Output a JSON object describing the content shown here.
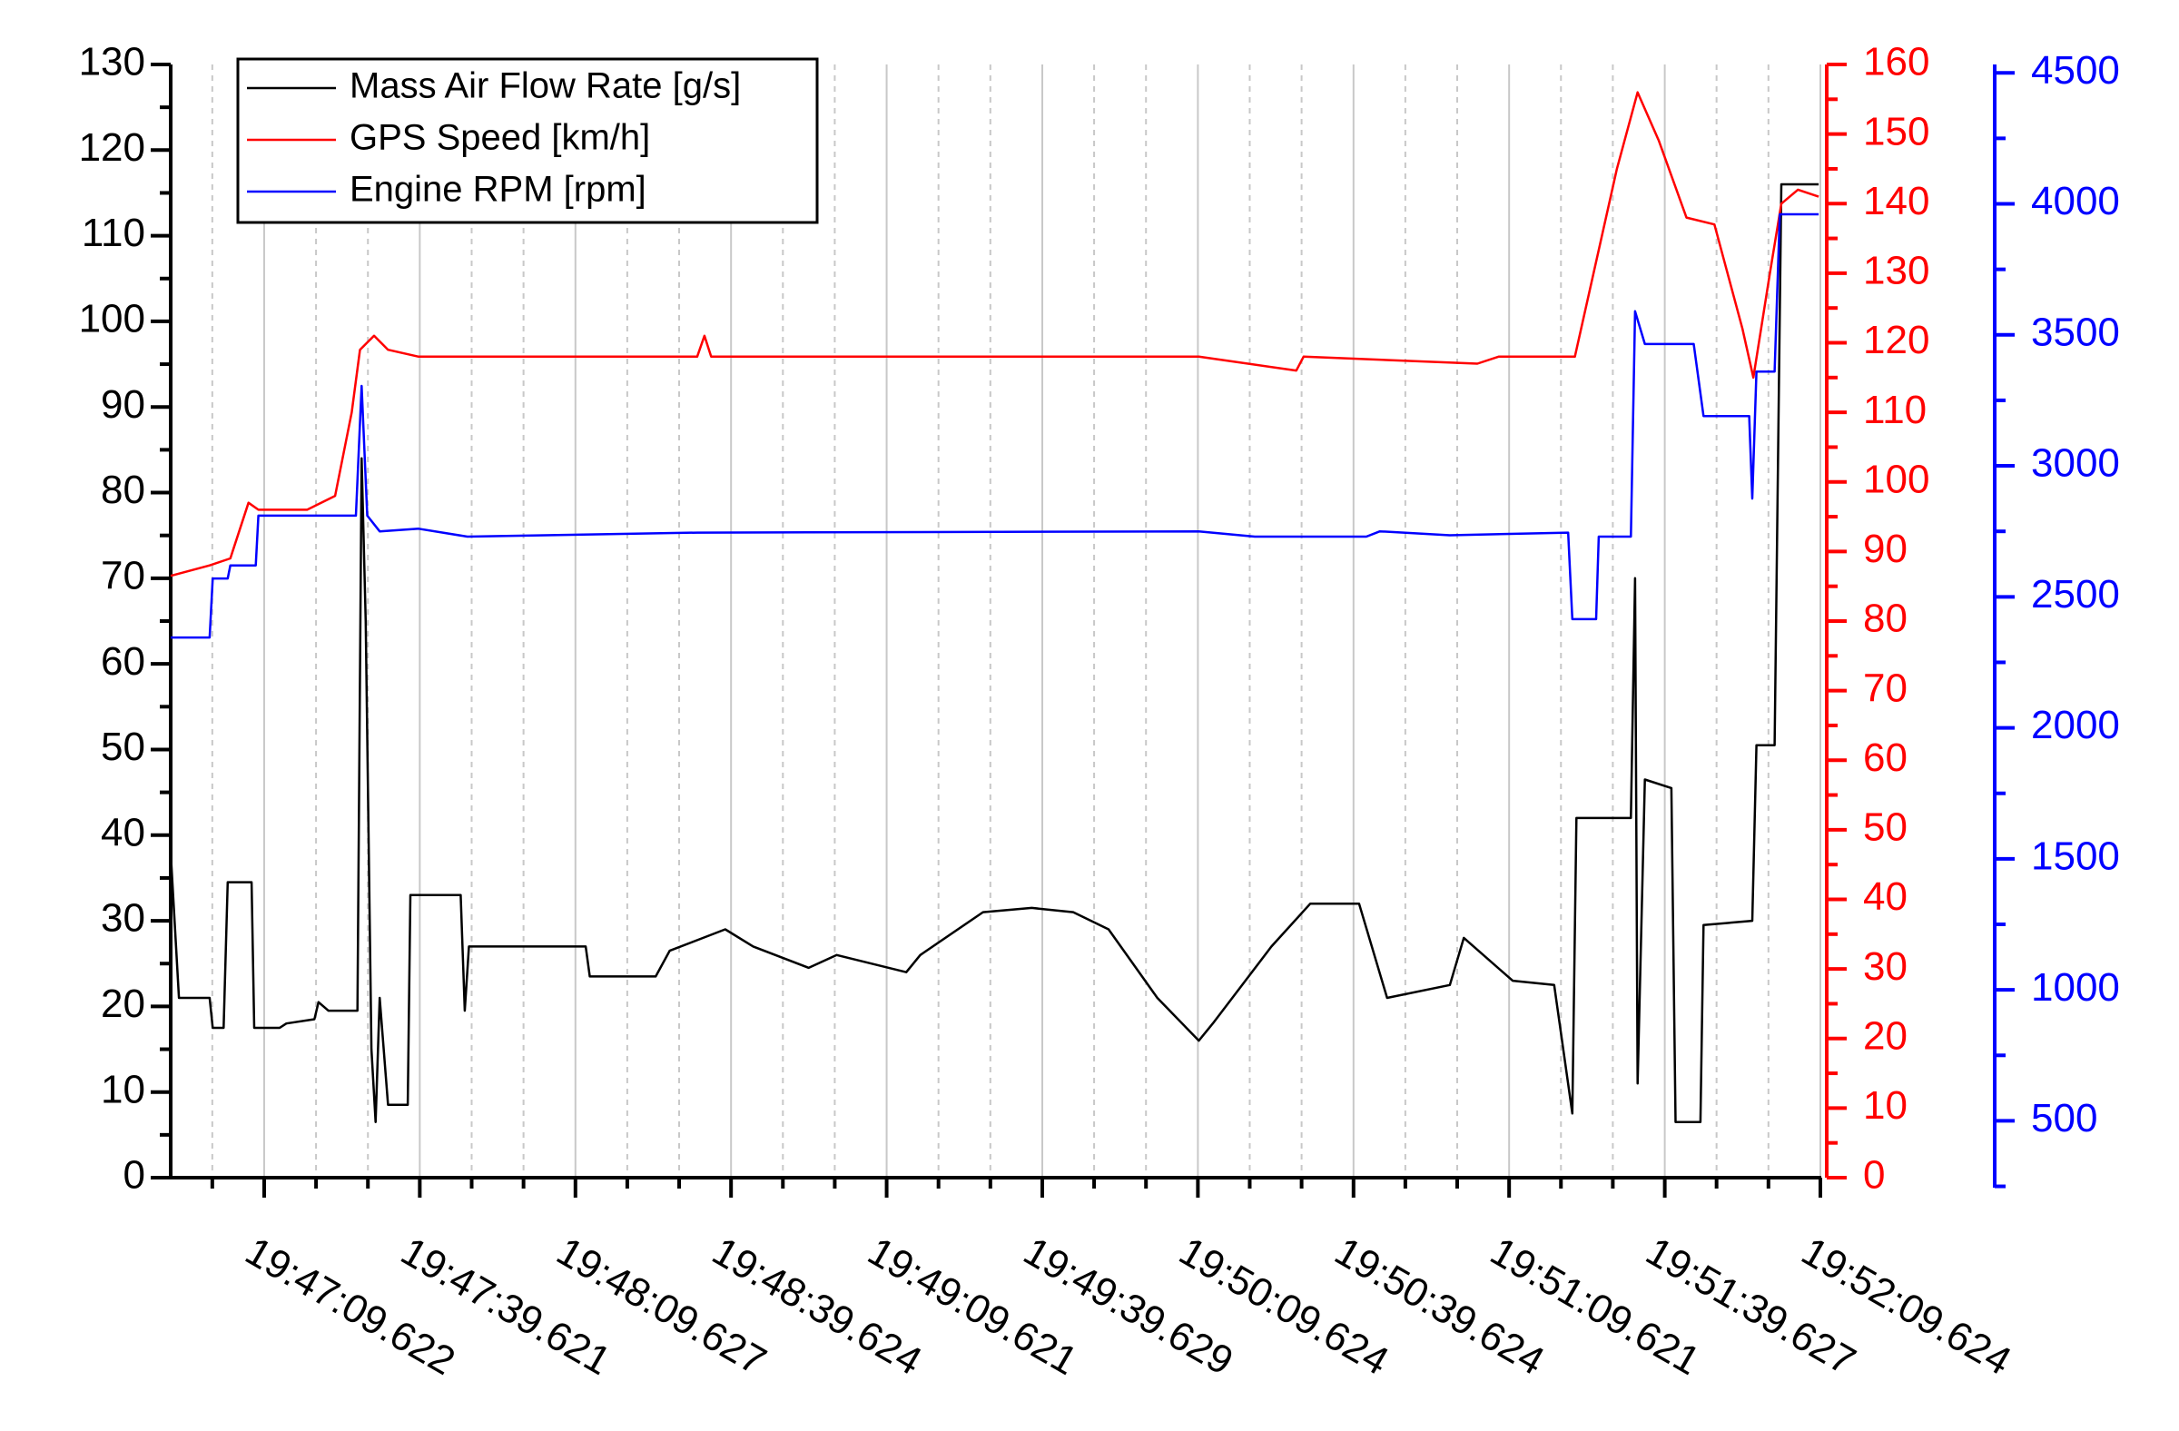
{
  "chart_data": {
    "type": "line",
    "xlim": [
      71211.6,
      71529.8
    ],
    "xticks": [
      {
        "value": 71229.622,
        "label": "19:47:09.622"
      },
      {
        "value": 71259.621,
        "label": "19:47:39.621"
      },
      {
        "value": 71289.627,
        "label": "19:48:09.627"
      },
      {
        "value": 71319.624,
        "label": "19:48:39.624"
      },
      {
        "value": 71349.621,
        "label": "19:49:09.621"
      },
      {
        "value": 71379.629,
        "label": "19:49:39.629"
      },
      {
        "value": 71409.624,
        "label": "19:50:09.624"
      },
      {
        "value": 71439.624,
        "label": "19:50:39.624"
      },
      {
        "value": 71469.621,
        "label": "19:51:09.621"
      },
      {
        "value": 71499.627,
        "label": "19:51:39.627"
      },
      {
        "value": 71529.624,
        "label": "19:52:09.624"
      }
    ],
    "ylim": [
      0,
      130
    ],
    "yticks": [
      0,
      10,
      20,
      30,
      40,
      50,
      60,
      70,
      80,
      90,
      100,
      110,
      120,
      130
    ],
    "y2lim": [
      0,
      160
    ],
    "y2ticks": [
      0,
      10,
      20,
      30,
      40,
      50,
      60,
      70,
      80,
      90,
      100,
      110,
      120,
      130,
      140,
      150,
      160
    ],
    "y3lim": [
      245,
      4532
    ],
    "y3ticks": [
      500,
      1000,
      1500,
      2000,
      2500,
      3000,
      3500,
      4000,
      4500
    ],
    "grid": true,
    "legend": "upper left",
    "series": [
      {
        "name": "Mass Air Flow Rate [g/s]",
        "color": "#000000",
        "axis": "y",
        "x": [
          71211.6,
          71213.2,
          71219.1,
          71219.7,
          71221.8,
          71222.6,
          71227.2,
          71227.7,
          71232.6,
          71233.9,
          71239.3,
          71240.1,
          71242.0,
          71247.6,
          71248.4,
          71249.2,
          71250.3,
          71251.1,
          71251.9,
          71253.5,
          71257.3,
          71257.8,
          71267.5,
          71268.3,
          71269.1,
          71271.5,
          71291.6,
          71292.4,
          71305.1,
          71307.8,
          71318.5,
          71323.9,
          71334.6,
          71340.0,
          71353.4,
          71356.1,
          71368.2,
          71377.6,
          71385.6,
          71392.4,
          71401.8,
          71409.8,
          71412.5,
          71423.8,
          71431.3,
          71440.7,
          71446.1,
          71458.2,
          71460.9,
          71470.3,
          71478.3,
          71481.8,
          71482.6,
          71493.1,
          71493.9,
          71494.4,
          71495.8,
          71500.9,
          71501.7,
          71506.5,
          71507.1,
          71516.5,
          71517.3,
          71520.8,
          71522.1,
          71529.3
        ],
        "values": [
          38,
          21,
          21,
          17.5,
          17.5,
          34.5,
          34.5,
          17.5,
          17.5,
          18,
          18.5,
          20.5,
          19.5,
          19.5,
          84,
          65,
          15,
          6.5,
          21,
          8.5,
          8.5,
          33,
          33,
          19.5,
          27,
          27,
          27,
          23.5,
          23.5,
          26.5,
          29,
          27,
          24.5,
          26,
          24,
          26,
          31,
          31.5,
          31,
          29,
          21,
          16,
          18,
          27,
          32,
          32,
          21,
          22.5,
          28,
          23,
          22.5,
          7.5,
          42,
          42,
          70,
          11,
          46.5,
          45.5,
          6.5,
          6.5,
          29.5,
          30,
          50.5,
          50.5,
          116,
          116
        ]
      },
      {
        "name": "GPS Speed [km/h]",
        "color": "#ff0000",
        "axis": "y2",
        "x": [
          71211.6,
          71219.1,
          71223.1,
          71226.6,
          71228.5,
          71237.9,
          71243.3,
          71246.5,
          71248.1,
          71250.8,
          71253.5,
          71259.4,
          71291.6,
          71313.1,
          71314.5,
          71315.8,
          71366.8,
          71409.8,
          71428.6,
          71430.0,
          71463.5,
          71467.6,
          71482.3,
          71490.4,
          71494.4,
          71498.5,
          71503.8,
          71509.2,
          71514.6,
          71516.7,
          71519.9,
          71522.1,
          71525.3,
          71529.3
        ],
        "values": [
          86.5,
          88,
          89,
          97,
          96,
          96,
          98,
          110,
          119,
          121,
          119,
          118,
          118,
          118,
          121,
          118,
          118,
          118,
          116,
          118,
          117,
          118,
          118,
          145,
          156,
          149,
          138,
          137,
          122,
          115,
          130,
          140,
          142,
          141
        ]
      },
      {
        "name": "Engine RPM [rpm]",
        "color": "#0000ff",
        "axis": "y3",
        "x": [
          71211.6,
          71219.1,
          71219.7,
          71222.6,
          71223.1,
          71228.0,
          71228.5,
          71247.3,
          71248.4,
          71249.5,
          71251.9,
          71259.4,
          71268.8,
          71313.1,
          71409.8,
          71420.6,
          71442.1,
          71444.7,
          71458.2,
          71481.0,
          71481.8,
          71486.4,
          71486.9,
          71493.1,
          71493.9,
          71495.8,
          71505.2,
          71507.1,
          71515.9,
          71516.5,
          71517.3,
          71520.8,
          71521.8,
          71529.3
        ],
        "values": [
          2345,
          2345,
          2570,
          2570,
          2620,
          2620,
          2810,
          2810,
          3305,
          2810,
          2750,
          2760,
          2730,
          2745,
          2750,
          2730,
          2730,
          2750,
          2735,
          2745,
          2415,
          2415,
          2730,
          2730,
          3590,
          3465,
          3465,
          3190,
          3190,
          2875,
          3360,
          3360,
          3960,
          3960
        ]
      }
    ]
  }
}
